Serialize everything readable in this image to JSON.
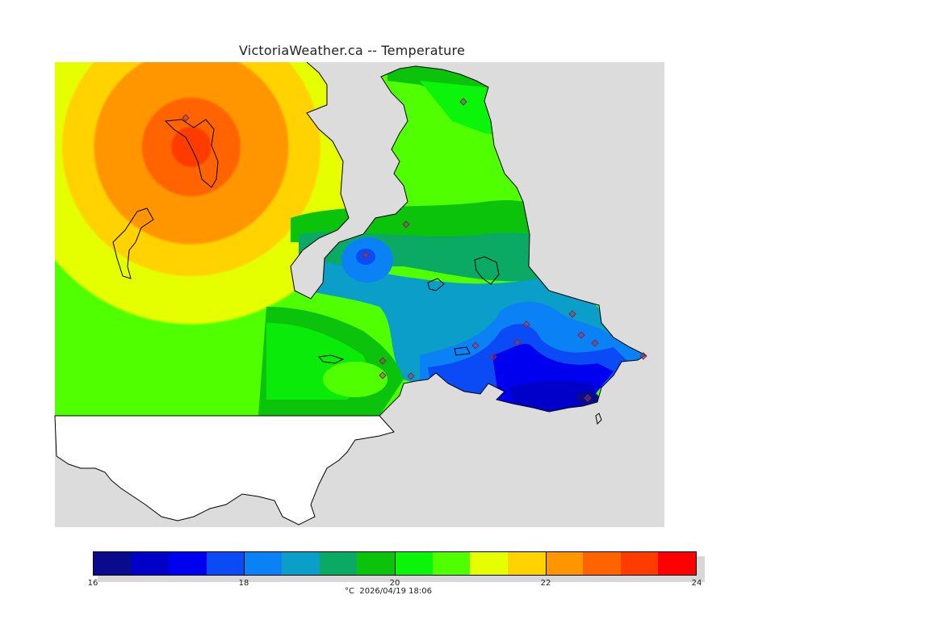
{
  "title": "VictoriaWeather.ca -- Temperature",
  "map": {
    "background_color": "#dcdcdc",
    "land_unshaded_color": "#ffffff",
    "coastline_color": "#000000",
    "station_marker": "diamond-icon",
    "station_marker_color": "#9a3c6a"
  },
  "legend": {
    "colors": [
      "#0a0a8c",
      "#0000c8",
      "#0000f0",
      "#0a4bf5",
      "#0a82f5",
      "#0a9ec8",
      "#0aaa64",
      "#0ac30a",
      "#0af50a",
      "#50ff00",
      "#e6ff00",
      "#ffd200",
      "#ff9600",
      "#ff6400",
      "#ff3c00",
      "#ff0000"
    ],
    "ticks": [
      "16",
      "18",
      "20",
      "22",
      "24"
    ],
    "caption": "°C  2026/04/19 18:06"
  }
}
